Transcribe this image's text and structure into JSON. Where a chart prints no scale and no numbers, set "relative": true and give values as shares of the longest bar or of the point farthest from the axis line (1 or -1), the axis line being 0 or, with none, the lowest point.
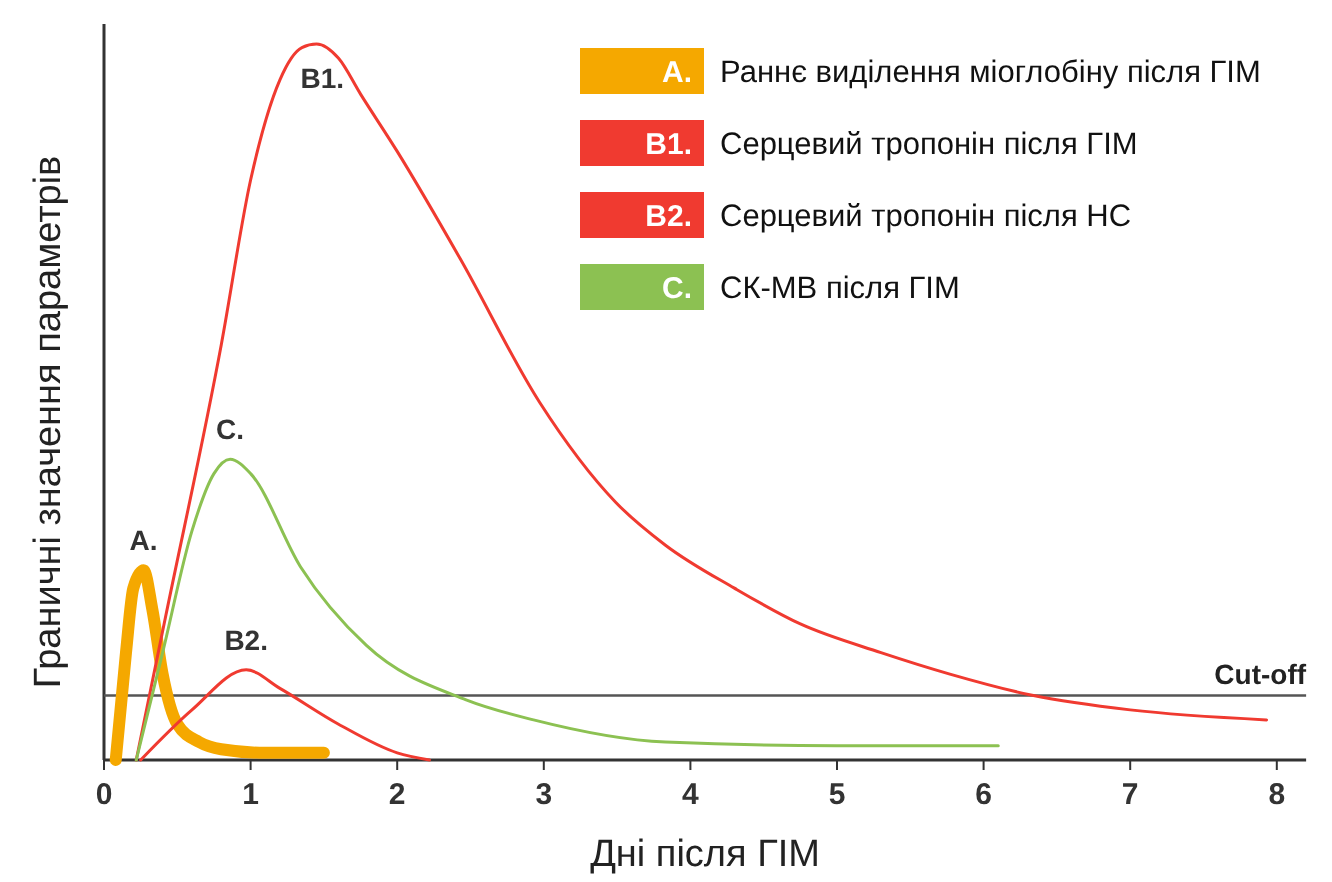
{
  "chart_data": {
    "type": "line",
    "relative": true,
    "xlabel": "Дні після ГІМ",
    "ylabel": "Граничні значення параметрів",
    "xlim": [
      0,
      8.2
    ],
    "xticks": [
      0,
      1,
      2,
      3,
      4,
      5,
      6,
      7,
      8
    ],
    "legend": "top right",
    "line_style": "solid",
    "series": [
      {
        "name": "Раннє виділення міоглобіну після ГІМ",
        "color": "#f5a800",
        "x": [
          0.08,
          0.15,
          0.2,
          0.27,
          0.33,
          0.4,
          0.5,
          0.65,
          0.8,
          1.1,
          1.5
        ],
        "values": [
          0,
          0.15,
          0.24,
          0.265,
          0.21,
          0.12,
          0.05,
          0.025,
          0.015,
          0.01,
          0.01
        ]
      },
      {
        "name": "Серцевий тропонін після ГІМ",
        "color": "#f03a30",
        "x": [
          0.22,
          0.42,
          0.8,
          1.0,
          1.2,
          1.35,
          1.45,
          1.6,
          1.75,
          2.0,
          2.43,
          2.97,
          3.49,
          3.83,
          4.3,
          4.75,
          5.3,
          5.77,
          6.34,
          7.0,
          7.93
        ],
        "values": [
          0,
          0.2,
          0.58,
          0.81,
          0.95,
          0.995,
          1,
          0.98,
          0.93,
          0.85,
          0.7,
          0.5,
          0.36,
          0.3,
          0.24,
          0.19,
          0.15,
          0.12,
          0.09,
          0.07,
          0.056
        ]
      },
      {
        "name": "Серцевий тропонін після НС",
        "color": "#f03a30",
        "x": [
          0.25,
          0.6,
          0.97,
          1.2,
          1.6,
          2.0,
          2.22
        ],
        "values": [
          0,
          0.07,
          0.126,
          0.1,
          0.05,
          0.01,
          0
        ]
      },
      {
        "name": "СК-МВ після ГІМ",
        "color": "#8cc152",
        "x": [
          0.22,
          0.4,
          0.6,
          0.75,
          0.86,
          1.0,
          1.34,
          1.79,
          2.47,
          2.93,
          3.83,
          5.0,
          6.1
        ],
        "values": [
          0,
          0.15,
          0.32,
          0.4,
          0.42,
          0.4,
          0.27,
          0.16,
          0.084,
          0.056,
          0.025,
          0.02,
          0.02
        ]
      }
    ],
    "annotations": [
      {
        "text": "A.",
        "x": 0.27,
        "y": 0.265
      },
      {
        "text": "B1.",
        "x": 1.45,
        "y": 1
      },
      {
        "text": "B2.",
        "x": 0.97,
        "y": 0.126
      },
      {
        "text": "C.",
        "x": 0.86,
        "y": 0.42
      }
    ],
    "ref_lines": [
      {
        "axis": "y",
        "value": 0.09,
        "label": "Cut-off",
        "color": "#555555"
      }
    ]
  }
}
